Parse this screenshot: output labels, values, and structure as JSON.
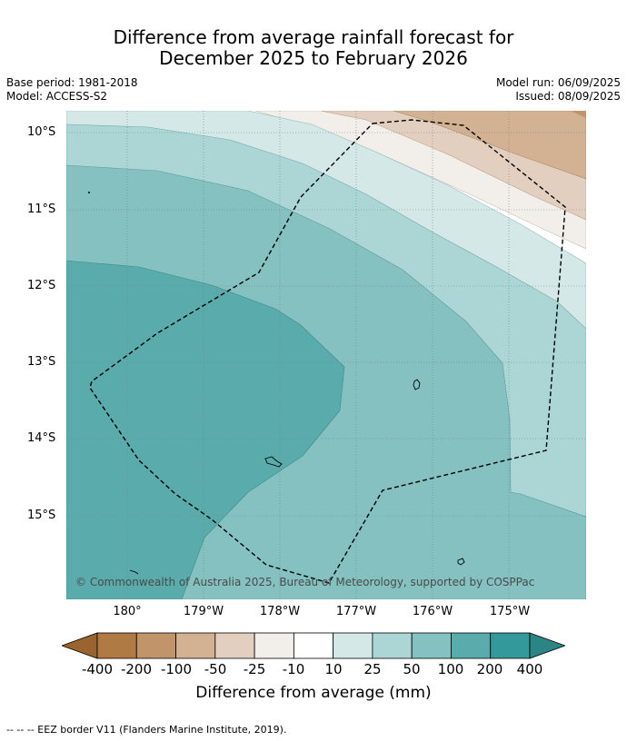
{
  "title": {
    "line1": "Difference from average rainfall forecast for",
    "line2": "December 2025 to February 2026"
  },
  "meta": {
    "base_period": "Base period: 1981-2018",
    "model": "Model: ACCESS-S2",
    "model_run": "Model run: 06/09/2025",
    "issued": "Issued: 08/09/2025"
  },
  "axes": {
    "lat_labels": [
      "10°S",
      "11°S",
      "12°S",
      "13°S",
      "14°S",
      "15°S"
    ],
    "lon_labels": [
      "180°",
      "179°W",
      "178°W",
      "177°W",
      "176°W",
      "175°W"
    ]
  },
  "copyright": "© Commonwealth of Australia 2025, Bureau of Meteorology, supported by COSPPac",
  "colorbar": {
    "label": "Difference from average (mm)",
    "ticks": [
      "-400",
      "-200",
      "-100",
      "-50",
      "-25",
      "-10",
      "10",
      "25",
      "50",
      "100",
      "200",
      "400"
    ],
    "colors": [
      "#9a6430",
      "#b07a45",
      "#c2946a",
      "#d3b193",
      "#e3cfbf",
      "#f2eeea",
      "#ffffff",
      "#d5e8e8",
      "#acd5d5",
      "#84c1c0",
      "#5aabab",
      "#33999a",
      "#2b8585"
    ]
  },
  "footer": "--  --  -- EEZ border V11 (Flanders Marine Institute, 2019)."
}
